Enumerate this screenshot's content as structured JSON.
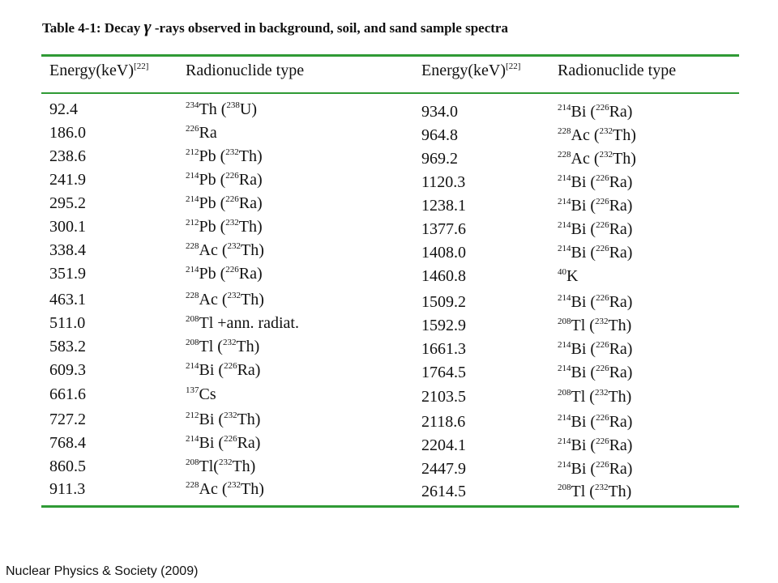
{
  "title": {
    "prefix": "Table 4-1: Decay",
    "symbol": "γ",
    "suffix": " -rays observed in background, soil, and sand sample spectra"
  },
  "table": {
    "headers": {
      "energy": "Energy(keV)",
      "energy_ref": "[22]",
      "nuclide": "Radionuclide type"
    },
    "rows": [
      {
        "e1": "92.4",
        "n1": [
          [
            "234",
            "Th"
          ],
          [
            " (",
            ""
          ],
          [
            "238",
            "U"
          ],
          [
            ")",
            ""
          ]
        ],
        "e2": "934.0",
        "n2": [
          [
            "214",
            "Bi"
          ],
          [
            " (",
            ""
          ],
          [
            "226",
            "Ra"
          ],
          [
            ")",
            ""
          ]
        ]
      },
      {
        "e1": "186.0",
        "n1": [
          [
            "226",
            "Ra"
          ]
        ],
        "e2": "964.8",
        "n2": [
          [
            "228",
            "Ac"
          ],
          [
            " (",
            ""
          ],
          [
            "232",
            "Th"
          ],
          [
            ")",
            ""
          ]
        ]
      },
      {
        "e1": "238.6",
        "n1": [
          [
            "212",
            "Pb"
          ],
          [
            " (",
            ""
          ],
          [
            "232",
            "Th"
          ],
          [
            ")",
            ""
          ]
        ],
        "e2": "969.2",
        "n2": [
          [
            "228",
            "Ac"
          ],
          [
            " (",
            ""
          ],
          [
            "232",
            "Th"
          ],
          [
            ")",
            ""
          ]
        ]
      },
      {
        "e1": "241.9",
        "n1": [
          [
            "214",
            "Pb"
          ],
          [
            " (",
            ""
          ],
          [
            "226",
            "Ra"
          ],
          [
            ")",
            ""
          ]
        ],
        "e2": "1120.3",
        "n2": [
          [
            "214",
            "Bi"
          ],
          [
            " (",
            ""
          ],
          [
            "226",
            "Ra"
          ],
          [
            ")",
            ""
          ]
        ]
      },
      {
        "e1": "295.2",
        "n1": [
          [
            "214",
            "Pb"
          ],
          [
            " (",
            ""
          ],
          [
            "226",
            "Ra"
          ],
          [
            ")",
            ""
          ]
        ],
        "e2": "1238.1",
        "n2": [
          [
            "214",
            "Bi"
          ],
          [
            " (",
            ""
          ],
          [
            "226",
            "Ra"
          ],
          [
            ")",
            ""
          ]
        ]
      },
      {
        "e1": "300.1",
        "n1": [
          [
            "212",
            "Pb"
          ],
          [
            " (",
            ""
          ],
          [
            "232",
            "Th"
          ],
          [
            ")",
            ""
          ]
        ],
        "e2": "1377.6",
        "n2": [
          [
            "214",
            "Bi"
          ],
          [
            " (",
            ""
          ],
          [
            "226",
            "Ra"
          ],
          [
            ")",
            ""
          ]
        ]
      },
      {
        "e1": "338.4",
        "n1": [
          [
            "228",
            "Ac"
          ],
          [
            " (",
            ""
          ],
          [
            "232",
            "Th"
          ],
          [
            ")",
            ""
          ]
        ],
        "e2": "1408.0",
        "n2": [
          [
            "214",
            "Bi"
          ],
          [
            " (",
            ""
          ],
          [
            "226",
            "Ra"
          ],
          [
            ")",
            ""
          ]
        ]
      },
      {
        "e1": "351.9",
        "n1": [
          [
            "214",
            "Pb"
          ],
          [
            " (",
            ""
          ],
          [
            "226",
            "Ra"
          ],
          [
            ")",
            ""
          ]
        ],
        "e2": "1460.8",
        "n2": [
          [
            "40",
            "K"
          ]
        ]
      },
      {
        "e1": "463.1",
        "n1": [
          [
            "228",
            "Ac"
          ],
          [
            " (",
            ""
          ],
          [
            "232",
            "Th"
          ],
          [
            ")",
            ""
          ]
        ],
        "e2": "1509.2",
        "n2": [
          [
            "214",
            "Bi"
          ],
          [
            " (",
            ""
          ],
          [
            "226",
            "Ra"
          ],
          [
            ")",
            ""
          ]
        ]
      },
      {
        "e1": "511.0",
        "n1": [
          [
            "208",
            "Tl"
          ],
          [
            " +ann. radiat.",
            ""
          ]
        ],
        "e2": "1592.9",
        "n2": [
          [
            "208",
            "Tl"
          ],
          [
            " (",
            ""
          ],
          [
            "232",
            "Th"
          ],
          [
            ")",
            ""
          ]
        ]
      },
      {
        "e1": "583.2",
        "n1": [
          [
            "208",
            "Tl"
          ],
          [
            " (",
            ""
          ],
          [
            "232",
            "Th"
          ],
          [
            ")",
            ""
          ]
        ],
        "e2": "1661.3",
        "n2": [
          [
            "214",
            "Bi"
          ],
          [
            " (",
            ""
          ],
          [
            "226",
            "Ra"
          ],
          [
            ")",
            ""
          ]
        ]
      },
      {
        "e1": "609.3",
        "n1": [
          [
            "214",
            "Bi"
          ],
          [
            " (",
            ""
          ],
          [
            "226",
            "Ra"
          ],
          [
            ")",
            ""
          ]
        ],
        "e2": "1764.5",
        "n2": [
          [
            "214",
            "Bi"
          ],
          [
            " (",
            ""
          ],
          [
            "226",
            "Ra"
          ],
          [
            ")",
            ""
          ]
        ]
      },
      {
        "e1": "661.6",
        "n1": [
          [
            "137",
            "Cs"
          ]
        ],
        "e2": "2103.5",
        "n2": [
          [
            "208",
            "Tl"
          ],
          [
            " (",
            ""
          ],
          [
            "232",
            "Th"
          ],
          [
            ")",
            ""
          ]
        ]
      },
      {
        "e1": "727.2",
        "n1": [
          [
            "212",
            "Bi"
          ],
          [
            " (",
            ""
          ],
          [
            "232",
            "Th"
          ],
          [
            ")",
            ""
          ]
        ],
        "e2": "2118.6",
        "n2": [
          [
            "214",
            "Bi"
          ],
          [
            " (",
            ""
          ],
          [
            "226",
            "Ra"
          ],
          [
            ")",
            ""
          ]
        ]
      },
      {
        "e1": "768.4",
        "n1": [
          [
            "214",
            "Bi"
          ],
          [
            " (",
            ""
          ],
          [
            "226",
            "Ra"
          ],
          [
            ")",
            ""
          ]
        ],
        "e2": "2204.1",
        "n2": [
          [
            "214",
            "Bi"
          ],
          [
            " (",
            ""
          ],
          [
            "226",
            "Ra"
          ],
          [
            ")",
            ""
          ]
        ]
      },
      {
        "e1": "860.5",
        "n1": [
          [
            "208",
            "Tl"
          ],
          [
            "(",
            ""
          ],
          [
            "232",
            "Th"
          ],
          [
            ")",
            ""
          ]
        ],
        "e2": "2447.9",
        "n2": [
          [
            "214",
            "Bi"
          ],
          [
            " (",
            ""
          ],
          [
            "226",
            "Ra"
          ],
          [
            ")",
            ""
          ]
        ]
      },
      {
        "e1": "911.3",
        "n1": [
          [
            "228",
            "Ac"
          ],
          [
            " (",
            ""
          ],
          [
            "232",
            "Th"
          ],
          [
            ")",
            ""
          ]
        ],
        "e2": "2614.5",
        "n2": [
          [
            "208",
            "Tl"
          ],
          [
            " (",
            ""
          ],
          [
            "232",
            "Th"
          ],
          [
            ")",
            ""
          ]
        ]
      }
    ]
  },
  "footer": "Nuclear Physics & Society (2009)",
  "colors": {
    "rule": "#2f9a35"
  }
}
